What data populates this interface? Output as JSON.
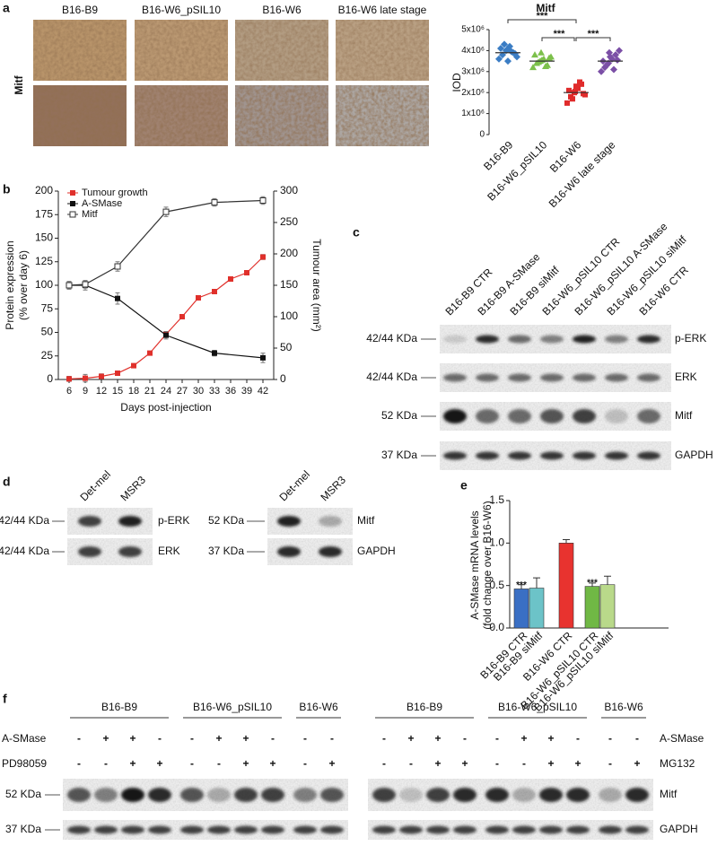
{
  "panel_labels": [
    "a",
    "b",
    "c",
    "d",
    "e",
    "f"
  ],
  "histology": {
    "stain": "Mitf",
    "columns": [
      "B16-B9",
      "B16-W6_pSIL10",
      "B16-W6",
      "B16-W6 late stage"
    ]
  },
  "chart_data": [
    {
      "type": "scatter",
      "title": "Mitf",
      "y_label": "IOD",
      "categories": [
        "B16-B9",
        "B16-W6_pSIL10",
        "B16-W6",
        "B16-W6 late stage"
      ],
      "groups": [
        {
          "color": "#3b7dc4",
          "marker": "diamond",
          "values": [
            3600000,
            3800000,
            4000000,
            4200000,
            3900000,
            3700000,
            4100000,
            4300000,
            3500000,
            3950000,
            3850000,
            4050000
          ]
        },
        {
          "color": "#7cc04b",
          "marker": "triangle",
          "values": [
            3200000,
            3400000,
            3500000,
            3600000,
            3300000,
            3700000,
            3800000,
            3450000,
            3550000,
            3250000,
            3650000,
            3900000
          ]
        },
        {
          "color": "#e02b2b",
          "marker": "square",
          "values": [
            1500000,
            1800000,
            2000000,
            2200000,
            2400000,
            1900000,
            2100000,
            1700000,
            2300000,
            2500000,
            1950000,
            2050000
          ]
        },
        {
          "color": "#7b4fa6",
          "marker": "diamond",
          "values": [
            3000000,
            3200000,
            3400000,
            3600000,
            3800000,
            4000000,
            3500000,
            3300000,
            3700000,
            3100000,
            3550000,
            3900000
          ]
        }
      ],
      "means": [
        3900000,
        3500000,
        2000000,
        3500000
      ],
      "significance": [
        "***",
        "***",
        "***"
      ],
      "ylim": [
        0,
        5000000
      ],
      "yticks": [
        0,
        {
          "value": 1000000,
          "label": "1x10⁶"
        },
        {
          "value": 2000000,
          "label": "2x10⁶"
        },
        {
          "value": 3000000,
          "label": "3x10⁶"
        },
        {
          "value": 4000000,
          "label": "4x10⁶"
        },
        {
          "value": 5000000,
          "label": "5x10⁶"
        }
      ]
    },
    {
      "type": "line",
      "y_label": [
        "Protein expression",
        "(% over day 6)"
      ],
      "y2_label": "Tumour area (mm²)",
      "x_label": "Days post-injection",
      "xlim": [
        4,
        44
      ],
      "xticks": [
        6,
        9,
        12,
        15,
        18,
        21,
        24,
        27,
        30,
        33,
        36,
        39,
        42
      ],
      "ylim": [
        0,
        200
      ],
      "yticks": [
        0,
        25,
        50,
        75,
        100,
        125,
        150,
        175,
        200
      ],
      "y2lim": [
        0,
        300
      ],
      "y2ticks": [
        0,
        50,
        100,
        150,
        200,
        250,
        300
      ],
      "legend": "upper-left",
      "series": [
        {
          "name": "Tumour growth",
          "color": "#e0302b",
          "marker": "filled",
          "axis": "y2",
          "x": [
            6,
            9,
            12,
            15,
            18,
            21,
            24,
            27,
            30,
            33,
            36,
            39,
            42
          ],
          "values": [
            1,
            2,
            5,
            10,
            22,
            42,
            72,
            100,
            130,
            140,
            160,
            170,
            195
          ],
          "errors": [
            4,
            6,
            4,
            3,
            2,
            3,
            3,
            3,
            3,
            3,
            3,
            3,
            4
          ]
        },
        {
          "name": "A-SMase",
          "color": "#111111",
          "marker": "filled",
          "x": [
            6,
            9,
            15,
            24,
            33,
            42
          ],
          "values": [
            100,
            100,
            86,
            47,
            28,
            23
          ],
          "errors": [
            4,
            5,
            6,
            4,
            3,
            5
          ]
        },
        {
          "name": "Mitf",
          "color": "#333333",
          "marker": "open",
          "x": [
            6,
            9,
            15,
            24,
            33,
            42
          ],
          "values": [
            100,
            101,
            120,
            178,
            188,
            190
          ],
          "errors": [
            4,
            4,
            5,
            5,
            4,
            4
          ]
        }
      ]
    },
    {
      "type": "bar",
      "y_label": [
        "A-SMase mRNA levels",
        "(fold change over B16-W6)"
      ],
      "categories": [
        "B16-B9 CTR",
        "B16-B9 siMitf",
        "B16-W6 CTR",
        "B16-W6_pSIL10 CTR",
        "B16-W6_pSIL10 siMitf"
      ],
      "values": [
        0.46,
        0.47,
        1.0,
        0.49,
        0.51
      ],
      "errors": [
        0.05,
        0.12,
        0.04,
        0.04,
        0.1
      ],
      "colors": [
        "#3a6fc4",
        "#6cc3c8",
        "#e8332f",
        "#70b845",
        "#b9d98a"
      ],
      "significance": [
        "***",
        null,
        null,
        "***",
        null
      ],
      "ylim": [
        0,
        1.5
      ],
      "yticks": [
        {
          "value": 0,
          "label": "0.0"
        },
        0.5,
        {
          "value": 1,
          "label": "1.0"
        },
        1.5
      ]
    }
  ],
  "blot_c": {
    "lanes": [
      "B16-B9 CTR",
      "B16-B9 A-SMase",
      "B16-B9 siMitf",
      "B16-W6_pSIL10 CTR",
      "B16-W6_pSIL10 A-SMase",
      "B16-W6_pSIL10 siMitf",
      "B16-W6 CTR"
    ],
    "rows": [
      {
        "size": "42/44 KDa",
        "protein": "p-ERK"
      },
      {
        "size": "42/44 KDa",
        "protein": "ERK"
      },
      {
        "size": "52 KDa",
        "protein": "Mitf"
      },
      {
        "size": "37 KDa",
        "protein": "GAPDH"
      }
    ]
  },
  "blot_d": [
    {
      "lanes": [
        "Det-mel",
        "MSR3"
      ],
      "rows": [
        {
          "size": "42/44 KDa",
          "protein": "p-ERK"
        },
        {
          "size": "42/44 KDa",
          "protein": "ERK"
        }
      ]
    },
    {
      "lanes": [
        "Det-mel",
        "MSR3"
      ],
      "rows": [
        {
          "size": "52 KDa",
          "protein": "Mitf"
        },
        {
          "size": "37 KDa",
          "protein": "GAPDH"
        }
      ]
    }
  ],
  "blot_f": {
    "rows": [
      {
        "size": "52 KDa",
        "protein": "Mitf"
      },
      {
        "size": "37 KDa",
        "protein": "GAPDH"
      }
    ],
    "blots": [
      {
        "groups": [
          "B16-B9",
          "B16-W6_pSIL10",
          "B16-W6"
        ],
        "treatments": [
          {
            "name": "A-SMase",
            "signs": [
              "-",
              "+",
              "+",
              "-",
              "-",
              "+",
              "+",
              "-",
              "-",
              "-"
            ]
          },
          {
            "name": "PD98059",
            "signs": [
              "-",
              "-",
              "+",
              "+",
              "-",
              "-",
              "+",
              "+",
              "-",
              "+"
            ]
          }
        ]
      },
      {
        "groups": [
          "B16-B9",
          "B16-W6_pSIL10",
          "B16-W6"
        ],
        "treatments": [
          {
            "name": "A-SMase",
            "signs": [
              "-",
              "+",
              "+",
              "-",
              "-",
              "+",
              "+",
              "-",
              "-",
              "-"
            ]
          },
          {
            "name": "MG132",
            "signs": [
              "-",
              "-",
              "+",
              "+",
              "-",
              "-",
              "+",
              "+",
              "-",
              "+"
            ]
          }
        ]
      }
    ]
  }
}
